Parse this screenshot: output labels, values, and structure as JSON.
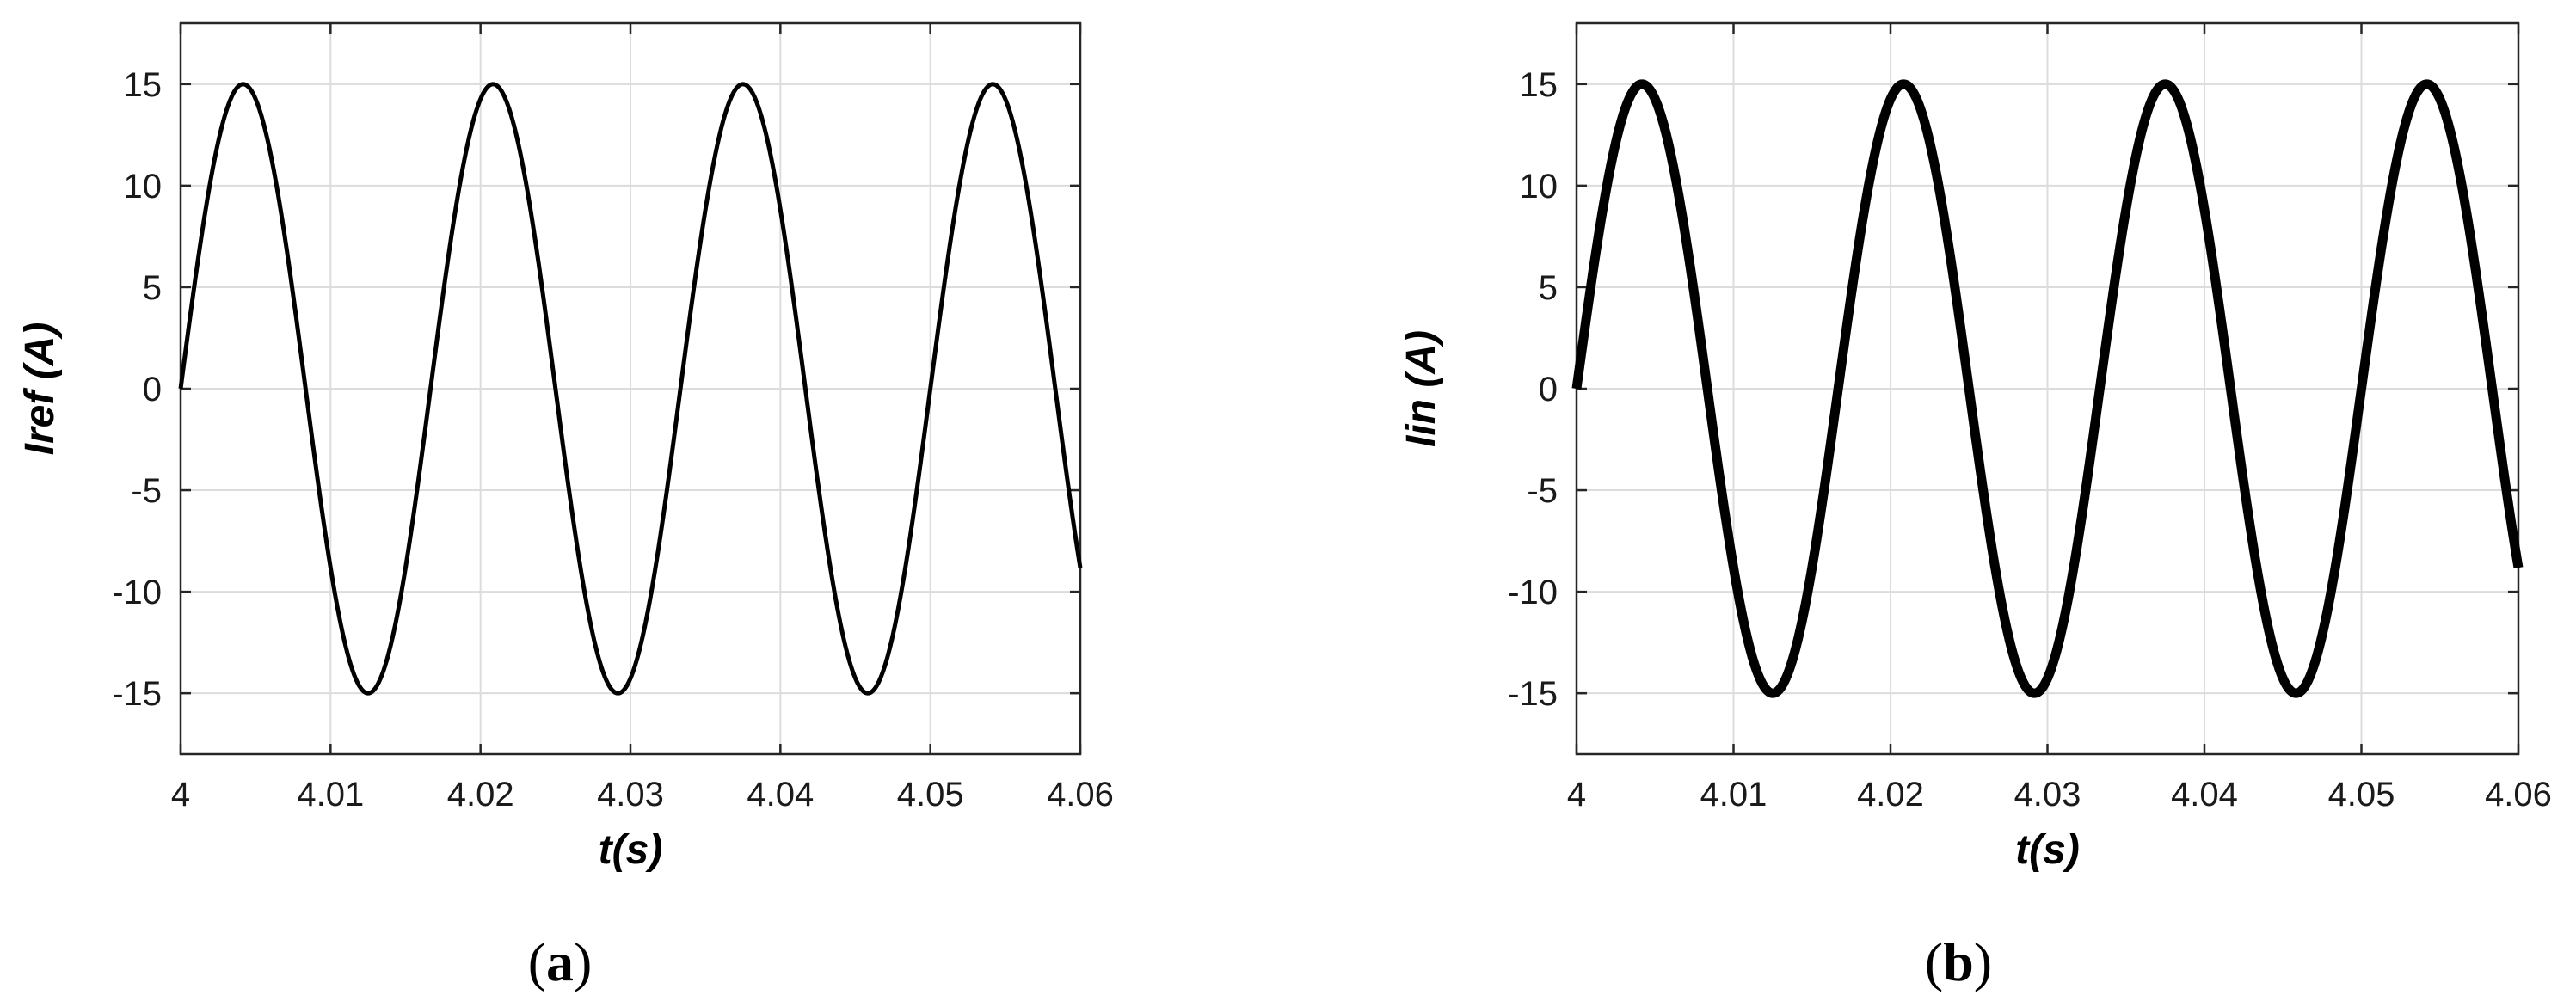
{
  "chart_data": [
    {
      "type": "line",
      "panel_label": "a",
      "xlabel": "t(s)",
      "ylabel": "Iref (A)",
      "xlim": [
        4,
        4.06
      ],
      "ylim": [
        -18,
        18
      ],
      "x_ticks": [
        "4",
        "4.01",
        "4.02",
        "4.03",
        "4.04",
        "4.05",
        "4.06"
      ],
      "y_ticks": [
        "15",
        "10",
        "5",
        "0",
        "-5",
        "-10",
        "-15"
      ],
      "grid": true,
      "series": [
        {
          "style": "thin",
          "color": "#000000",
          "amplitude": 15,
          "frequency_hz": 60,
          "x": [
            4.0,
            4.0042,
            4.0083,
            4.0125,
            4.0167,
            4.0208,
            4.025,
            4.0292,
            4.0333,
            4.0375,
            4.0417,
            4.0458,
            4.05,
            4.0542,
            4.06
          ],
          "values": [
            0,
            15,
            0,
            -15,
            0,
            15,
            0,
            -15,
            0,
            15,
            0,
            -15,
            0,
            15,
            -9
          ]
        }
      ]
    },
    {
      "type": "line",
      "panel_label": "b",
      "xlabel": "t(s)",
      "ylabel": "Iin (A)",
      "xlim": [
        4,
        4.06
      ],
      "ylim": [
        -18,
        18
      ],
      "x_ticks": [
        "4",
        "4.01",
        "4.02",
        "4.03",
        "4.04",
        "4.05",
        "4.06"
      ],
      "y_ticks": [
        "15",
        "10",
        "5",
        "0",
        "-5",
        "-10",
        "-15"
      ],
      "grid": true,
      "series": [
        {
          "style": "thick",
          "color": "#000000",
          "amplitude": 15,
          "frequency_hz": 60,
          "x": [
            4.0,
            4.0042,
            4.0083,
            4.0125,
            4.0167,
            4.0208,
            4.025,
            4.0292,
            4.0333,
            4.0375,
            4.0417,
            4.0458,
            4.05,
            4.0542,
            4.06
          ],
          "values": [
            0,
            15,
            0,
            -15,
            0,
            15,
            0,
            -15,
            0,
            15,
            0,
            -15,
            0,
            15,
            -9
          ]
        }
      ]
    }
  ],
  "captions": [
    "a",
    "b"
  ]
}
